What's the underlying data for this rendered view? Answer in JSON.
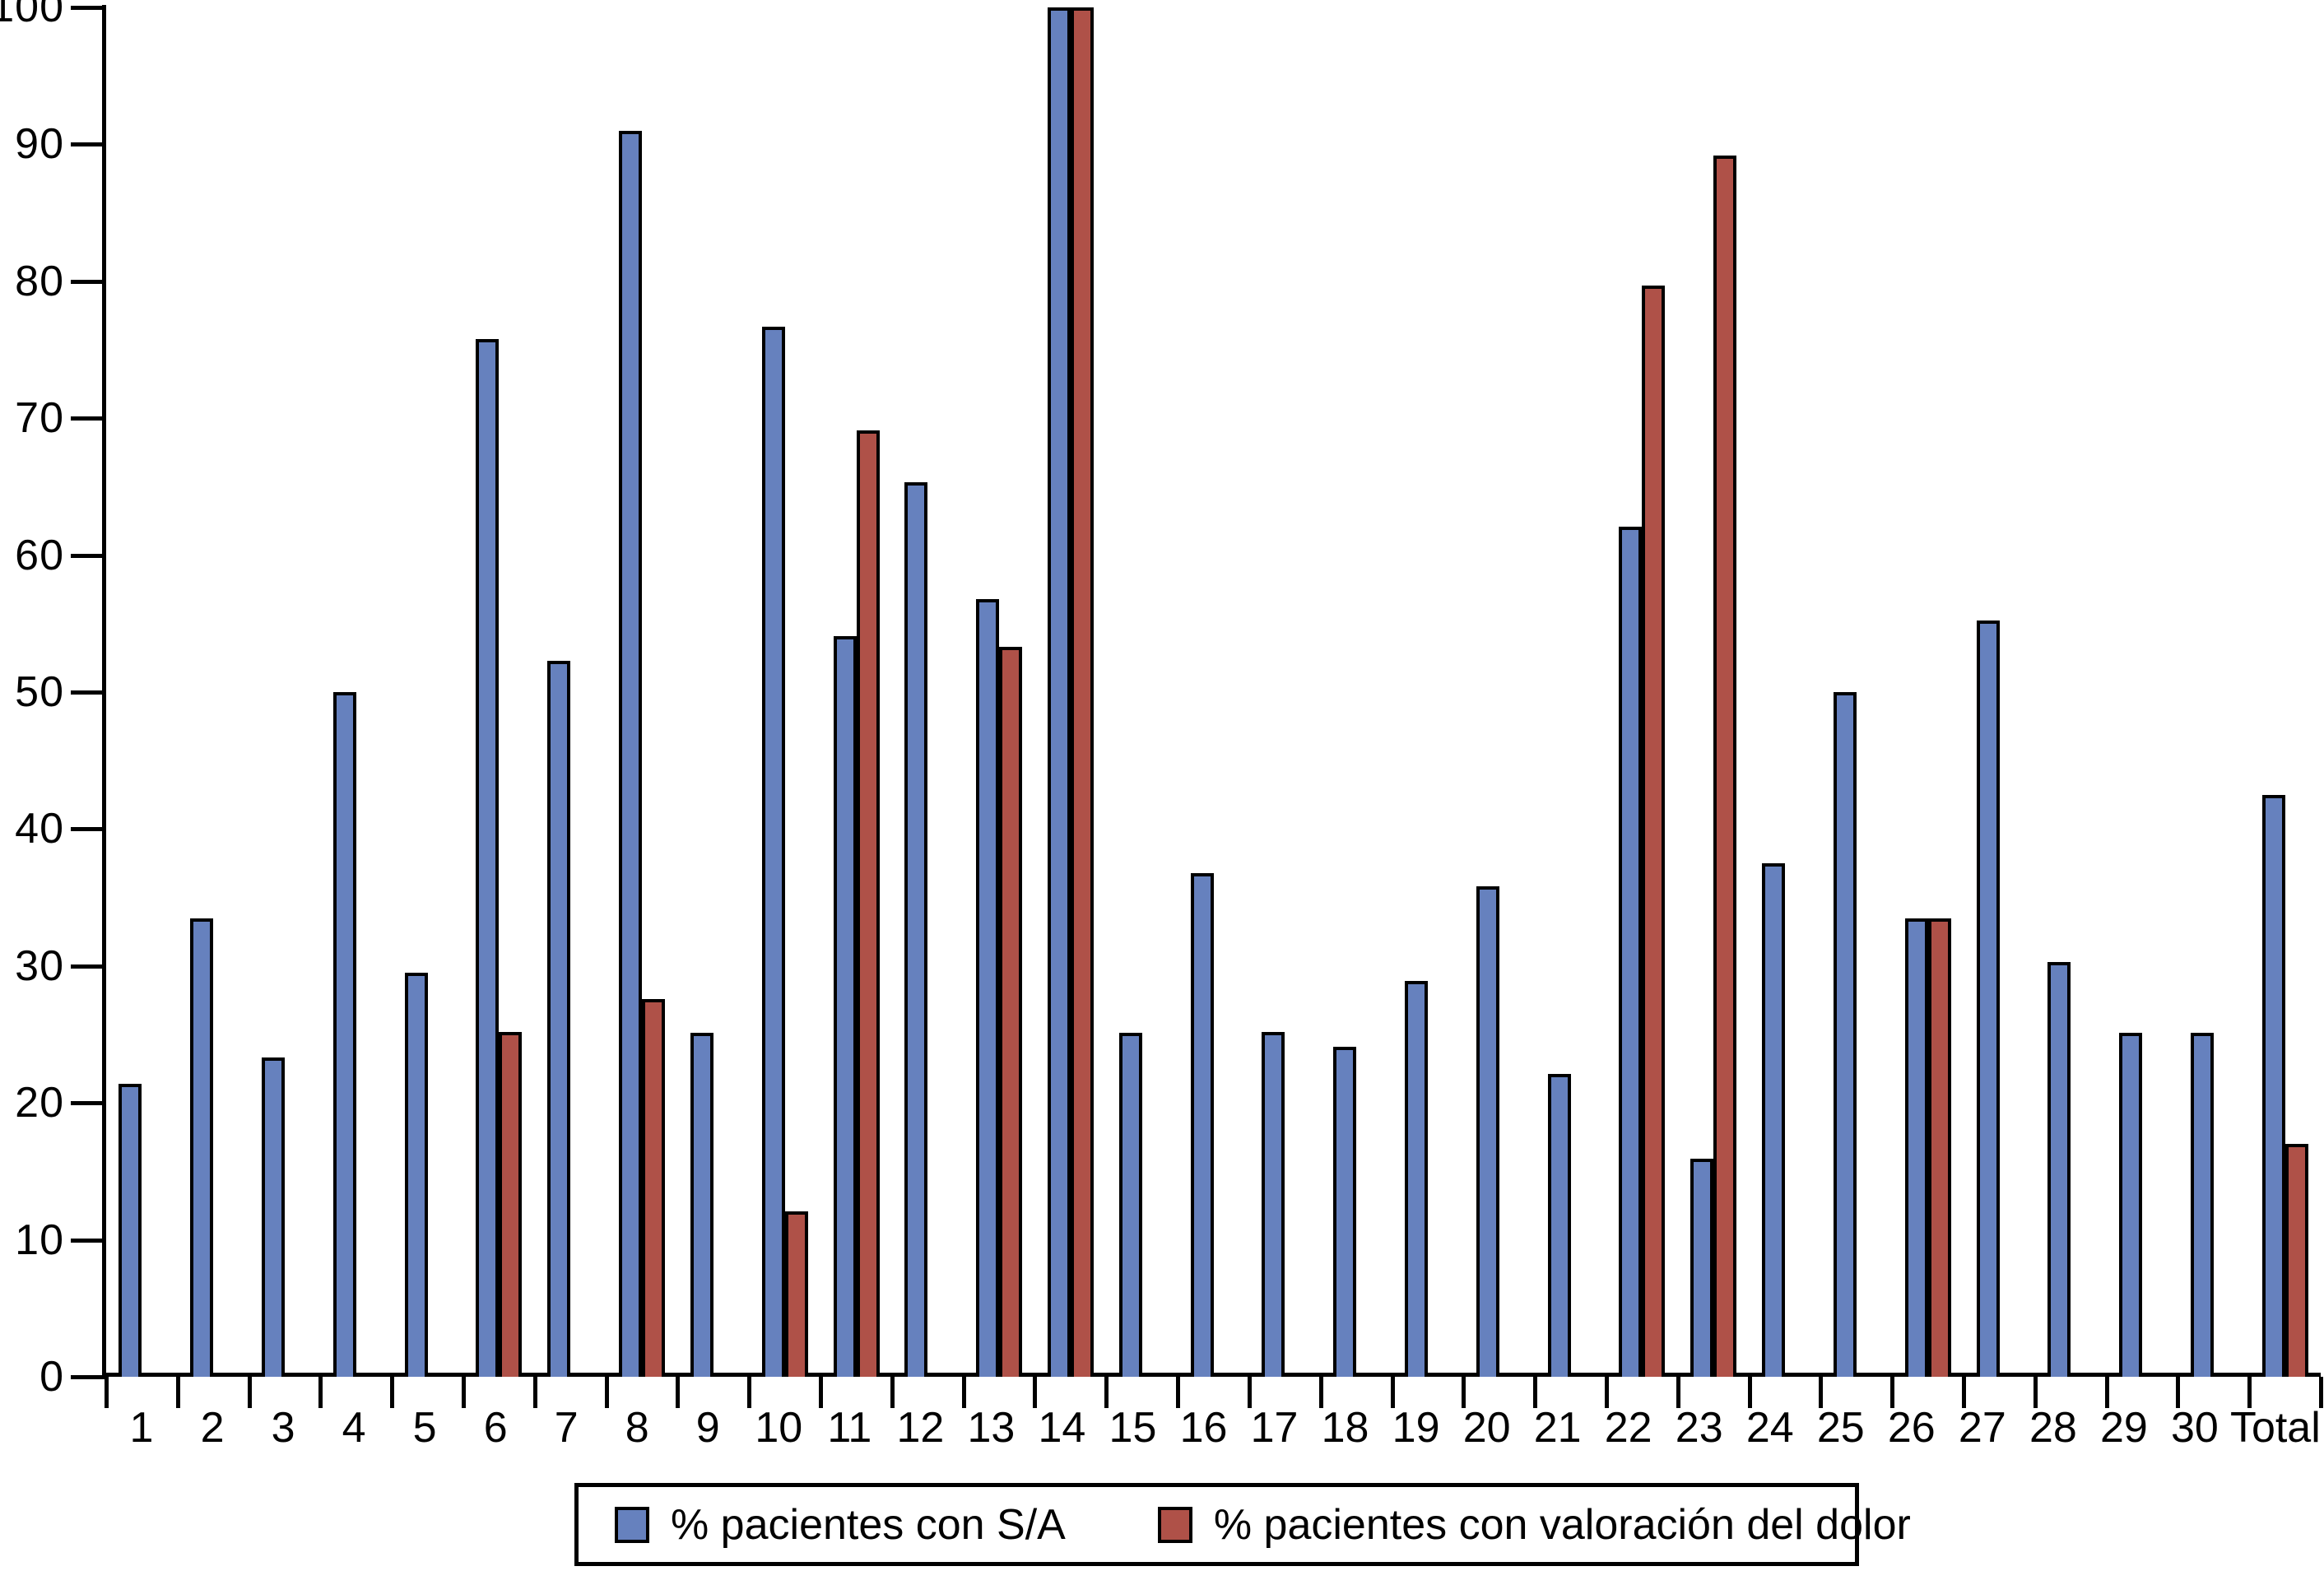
{
  "chart_data": {
    "type": "bar",
    "title": "",
    "xlabel": "",
    "ylabel": "",
    "categories": [
      "1",
      "2",
      "3",
      "4",
      "5",
      "6",
      "7",
      "8",
      "9",
      "10",
      "11",
      "12",
      "13",
      "14",
      "15",
      "16",
      "17",
      "18",
      "19",
      "20",
      "21",
      "22",
      "23",
      "24",
      "25",
      "26",
      "27",
      "28",
      "29",
      "30",
      "Total"
    ],
    "series": [
      {
        "name": "% pacientes con S/A",
        "color": "#6681BE",
        "values": [
          21.4,
          33.5,
          23.3,
          50,
          29.5,
          75.8,
          52.3,
          91,
          25.1,
          76.7,
          54.1,
          65.3,
          56.8,
          100,
          25.1,
          36.8,
          25.2,
          24.1,
          28.9,
          35.8,
          22.1,
          62.1,
          15.9,
          37.5,
          50,
          33.5,
          55.2,
          30.3,
          25.1,
          25.1,
          42.5
        ]
      },
      {
        "name": "% pacientes con valoración del dolor",
        "color": "#AF5148",
        "values": [
          null,
          null,
          null,
          null,
          null,
          25.2,
          null,
          27.6,
          null,
          12.1,
          69.1,
          null,
          53.3,
          100,
          null,
          null,
          null,
          null,
          null,
          null,
          null,
          79.7,
          89.2,
          null,
          null,
          33.5,
          null,
          null,
          null,
          null,
          17
        ]
      }
    ],
    "ylim": [
      0,
      100
    ],
    "yticks": [
      0,
      10,
      20,
      30,
      40,
      50,
      60,
      70,
      80,
      90,
      100
    ],
    "grid": false,
    "legend_position": "bottom",
    "axis_color": "#000000",
    "background_color": "#FFFFFF"
  }
}
